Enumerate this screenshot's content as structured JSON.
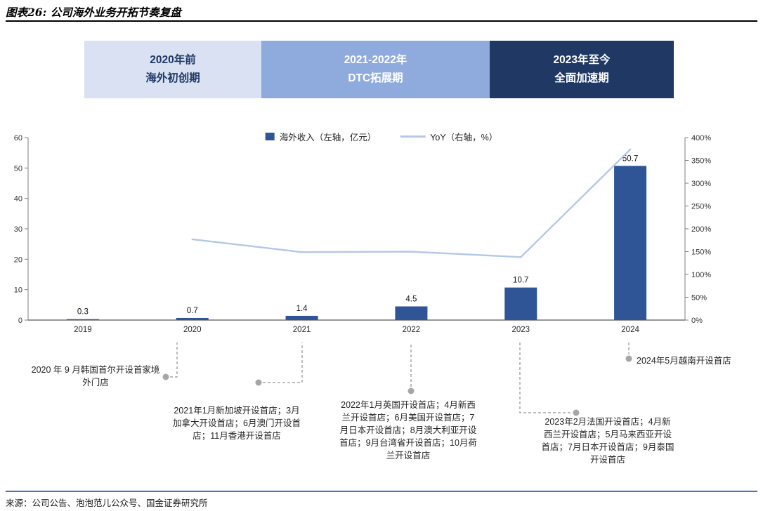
{
  "title": "图表26: 公司海外业务开拓节奏复盘",
  "source": "来源：公司公告、泡泡范儿公众号、国金证券研究所",
  "phases": [
    {
      "line1": "2020年前",
      "line2": "海外初创期",
      "bg": "#D9E1F2",
      "color": "#1F3864"
    },
    {
      "line1": "2021-2022年",
      "line2": "DTC拓展期",
      "bg": "#8FAADC",
      "color": "#FFFFFF"
    },
    {
      "line1": "2023年至今",
      "line2": "全面加速期",
      "bg": "#203864",
      "color": "#FFFFFF"
    }
  ],
  "chart_data": {
    "type": "bar+line combo",
    "categories": [
      "2019",
      "2020",
      "2021",
      "2022",
      "2023",
      "2024"
    ],
    "series": [
      {
        "name": "海外收入（左轴，亿元）",
        "type": "bar",
        "axis": "left",
        "color": "#2F5597",
        "values": [
          0.3,
          0.7,
          1.4,
          4.5,
          10.7,
          50.7
        ]
      },
      {
        "name": "YoY（右轴，%）",
        "type": "line",
        "axis": "right",
        "color": "#B4C7E7",
        "values": [
          null,
          177,
          149,
          150,
          138,
          374
        ]
      }
    ],
    "left_axis": {
      "min": 0,
      "max": 60,
      "step": 10,
      "suffix": ""
    },
    "right_axis": {
      "min": 0,
      "max": 400,
      "step": 50,
      "suffix": "%"
    },
    "legend": [
      "海外收入（左轴，亿元）",
      "YoY（右轴，%）"
    ],
    "legend_position": "top",
    "grid": false
  },
  "annotations": [
    "2020 年 9 月韩国首尔开设首家境外门店",
    "2021年1月新加坡开设首店；3月加拿大开设首店；6月澳门开设首店；11月香港开设首店",
    "2022年1月英国开设首店；4月新西兰开设首店；6月美国开设首店；7月日本开设首店；8月澳大利亚开设首店；9月台湾省开设首店；10月荷兰开设首店",
    "2023年2月法国开设首店；4月新西兰开设首店；5月马来西亚开设首店；7月日本开设首店；9月泰国开设首店",
    "2024年5月越南开设首店"
  ],
  "colors": {
    "bar": "#2F5597",
    "line": "#B4C7E7",
    "leader": "#A6A6A6",
    "rule_top": "#000000",
    "rule_bottom": "#4472C4",
    "axis": "#7F7F7F"
  }
}
